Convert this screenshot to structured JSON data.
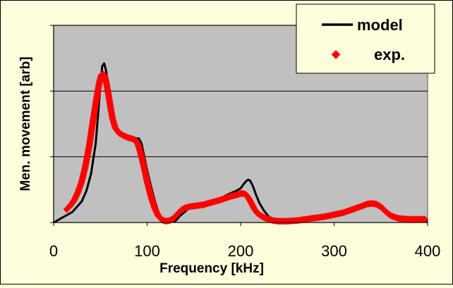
{
  "chart_data": {
    "type": "line",
    "title": "",
    "xlabel": "Frequency [kHz]",
    "ylabel": "Men. movement [arb]",
    "xlim": [
      0,
      400
    ],
    "ylim": [
      0,
      3
    ],
    "x_ticks": [
      0,
      100,
      200,
      300,
      400
    ],
    "x_tick_labels": [
      "0",
      "100",
      "200",
      "300",
      "400"
    ],
    "y_ticks": [
      0,
      1,
      2,
      3
    ],
    "y_tick_labels": [
      "",
      "",
      "",
      ""
    ],
    "grid": "horizontal",
    "plot_background": "#c0c0c0",
    "page_background": "#fefedc",
    "legend_position": "top-right",
    "series": [
      {
        "name": "model",
        "style": "line",
        "color": "#000000",
        "x": [
          0,
          10,
          20,
          30,
          35,
          40,
          45,
          48,
          50,
          52,
          54,
          56,
          58,
          60,
          63,
          66,
          70,
          75,
          80,
          85,
          88,
          91,
          94,
          97,
          100,
          104,
          108,
          112,
          116,
          120,
          125,
          130,
          135,
          140,
          145,
          150,
          160,
          170,
          180,
          190,
          195,
          200,
          203,
          206,
          208,
          210,
          213,
          216,
          220,
          225,
          230,
          235,
          240,
          245,
          250,
          260,
          270,
          280,
          290,
          300,
          310,
          320,
          330,
          335,
          340,
          345,
          350,
          355,
          360,
          365,
          370,
          380,
          390,
          400
        ],
        "y": [
          0.0,
          0.08,
          0.16,
          0.32,
          0.48,
          0.74,
          1.2,
          1.72,
          2.1,
          2.38,
          2.42,
          2.32,
          2.1,
          1.9,
          1.68,
          1.5,
          1.38,
          1.3,
          1.26,
          1.26,
          1.28,
          1.28,
          1.2,
          1.0,
          0.8,
          0.56,
          0.34,
          0.16,
          0.06,
          0.02,
          0.03,
          0.02,
          0.1,
          0.16,
          0.22,
          0.23,
          0.26,
          0.3,
          0.38,
          0.45,
          0.48,
          0.52,
          0.58,
          0.63,
          0.65,
          0.64,
          0.56,
          0.44,
          0.3,
          0.18,
          0.09,
          0.05,
          0.03,
          0.02,
          0.02,
          0.03,
          0.04,
          0.06,
          0.09,
          0.12,
          0.16,
          0.22,
          0.28,
          0.3,
          0.3,
          0.28,
          0.22,
          0.14,
          0.08,
          0.05,
          0.04,
          0.03,
          0.03,
          0.02
        ]
      },
      {
        "name": "exp.",
        "style": "markers",
        "color": "#ff0000",
        "x": [
          14,
          18,
          22,
          26,
          30,
          34,
          38,
          42,
          46,
          49,
          51,
          53,
          55,
          57,
          59,
          61,
          63,
          66,
          70,
          75,
          80,
          85,
          88,
          91,
          94,
          97,
          100,
          104,
          108,
          112,
          116,
          120,
          124,
          128,
          132,
          136,
          140,
          145,
          150,
          160,
          170,
          180,
          190,
          196,
          200,
          203,
          206,
          209,
          212,
          215,
          218,
          222,
          226,
          230,
          235,
          240,
          245,
          250,
          260,
          270,
          280,
          290,
          300,
          310,
          320,
          330,
          335,
          340,
          345,
          350,
          355,
          360,
          365,
          370,
          380,
          390,
          397
        ],
        "y": [
          0.2,
          0.26,
          0.34,
          0.46,
          0.62,
          0.86,
          1.16,
          1.54,
          1.9,
          2.14,
          2.24,
          2.26,
          2.22,
          2.08,
          1.92,
          1.74,
          1.58,
          1.44,
          1.36,
          1.32,
          1.29,
          1.27,
          1.25,
          1.16,
          1.0,
          0.82,
          0.62,
          0.4,
          0.22,
          0.1,
          0.04,
          0.02,
          0.03,
          0.06,
          0.12,
          0.18,
          0.22,
          0.24,
          0.25,
          0.27,
          0.31,
          0.35,
          0.4,
          0.42,
          0.44,
          0.44,
          0.42,
          0.36,
          0.28,
          0.2,
          0.14,
          0.1,
          0.07,
          0.05,
          0.03,
          0.02,
          0.02,
          0.02,
          0.03,
          0.05,
          0.07,
          0.09,
          0.12,
          0.15,
          0.2,
          0.25,
          0.28,
          0.29,
          0.28,
          0.24,
          0.17,
          0.11,
          0.08,
          0.06,
          0.05,
          0.05,
          0.05
        ]
      }
    ],
    "legend": [
      {
        "label": "model",
        "symbol": "line"
      },
      {
        "label": "exp.",
        "symbol": "diamond"
      }
    ]
  }
}
